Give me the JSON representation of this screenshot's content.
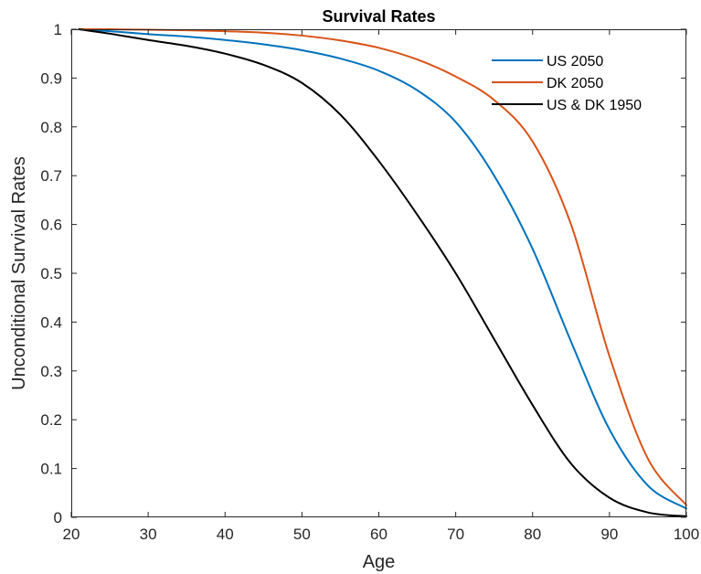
{
  "chart_data": {
    "type": "line",
    "title": "Survival Rates",
    "xlabel": "Age",
    "ylabel": "Unconditional Survival Rates",
    "xlim": [
      20,
      100
    ],
    "ylim": [
      0,
      1
    ],
    "xticks": [
      20,
      30,
      40,
      50,
      60,
      70,
      80,
      90,
      100
    ],
    "yticks": [
      0,
      0.1,
      0.2,
      0.3,
      0.4,
      0.5,
      0.6,
      0.7,
      0.8,
      0.9,
      1
    ],
    "ytick_labels": [
      "0",
      "0.1",
      "0.2",
      "0.3",
      "0.4",
      "0.5",
      "0.6",
      "0.7",
      "0.8",
      "0.9",
      "1"
    ],
    "grid": false,
    "legend_position": "top-right",
    "x": [
      21,
      25,
      30,
      35,
      40,
      45,
      50,
      55,
      60,
      65,
      70,
      75,
      80,
      85,
      90,
      95,
      100
    ],
    "series": [
      {
        "name": "US 2050",
        "color": "#0072BD",
        "values": [
          1.0,
          0.996,
          0.99,
          0.985,
          0.978,
          0.969,
          0.957,
          0.94,
          0.915,
          0.875,
          0.81,
          0.7,
          0.55,
          0.36,
          0.18,
          0.065,
          0.018
        ]
      },
      {
        "name": "DK 2050",
        "color": "#D95319",
        "values": [
          1.0,
          1.0,
          0.999,
          0.998,
          0.996,
          0.993,
          0.987,
          0.977,
          0.962,
          0.938,
          0.903,
          0.855,
          0.77,
          0.6,
          0.33,
          0.12,
          0.025
        ]
      },
      {
        "name": "US & DK 1950",
        "color": "#000000",
        "values": [
          1.0,
          0.991,
          0.978,
          0.966,
          0.95,
          0.927,
          0.89,
          0.825,
          0.73,
          0.62,
          0.5,
          0.365,
          0.23,
          0.11,
          0.04,
          0.01,
          0.002
        ]
      }
    ]
  }
}
